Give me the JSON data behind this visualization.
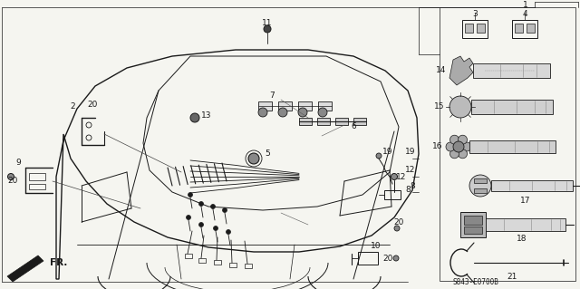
{
  "bg_color": "#f5f5f0",
  "line_color": "#1a1a1a",
  "fig_width": 6.4,
  "fig_height": 3.19,
  "dpi": 100,
  "diagram_code": "S843-E0700B",
  "part_label_fs": 6.5
}
